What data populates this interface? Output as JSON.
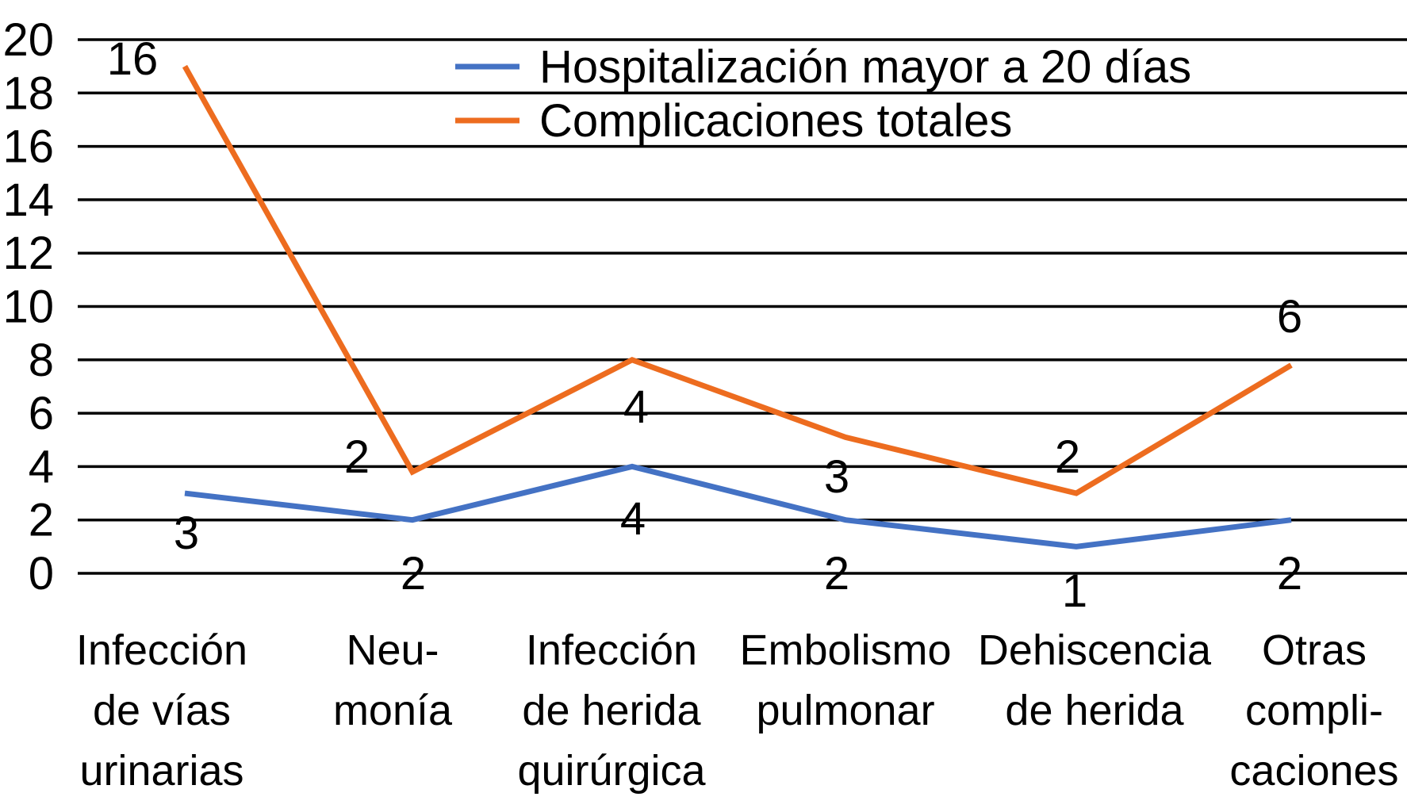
{
  "chart_data": {
    "type": "line",
    "categories": [
      [
        "Infección",
        "de vías",
        "urinarias"
      ],
      [
        "Neu-",
        "monía"
      ],
      [
        "Infección",
        "de herida",
        "quirúrgica"
      ],
      [
        "Embolismo",
        "pulmonar"
      ],
      [
        "Dehiscencia",
        "de herida"
      ],
      [
        "Otras",
        "compli-",
        "caciones"
      ]
    ],
    "ylim": [
      0,
      20
    ],
    "yticks": [
      0,
      2,
      4,
      6,
      8,
      10,
      12,
      14,
      16,
      18,
      20
    ],
    "grid": true,
    "legend_position": "top-center",
    "series": [
      {
        "name": "Hospitalización mayor a 20 días",
        "color": "#4472C4",
        "values": [
          3,
          2,
          4,
          2,
          1,
          2
        ],
        "labels": [
          "3",
          "2",
          "4",
          "2",
          "1",
          "2"
        ]
      },
      {
        "name": "Complicaciones totales",
        "color": "#ED6C1F",
        "values": [
          19,
          3.8,
          8,
          5.1,
          3,
          7.8
        ],
        "labels": [
          "16",
          "2",
          "4",
          "3",
          "2",
          "6"
        ]
      }
    ]
  }
}
